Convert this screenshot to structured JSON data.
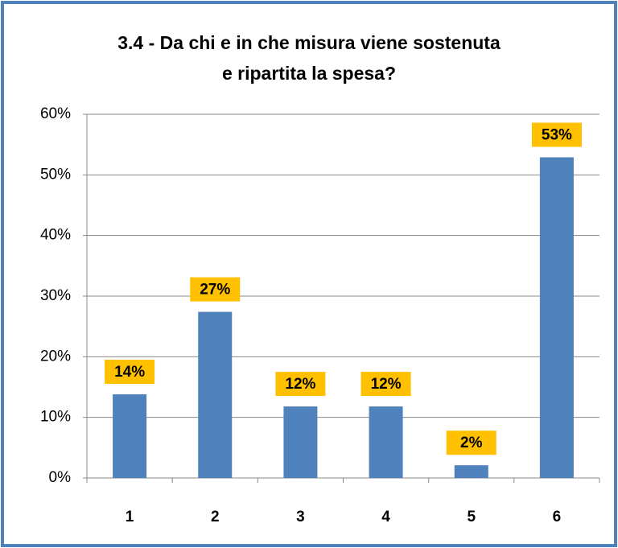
{
  "chart_data": {
    "type": "bar",
    "title": [
      "3.4 - Da chi e in che misura viene sostenuta",
      "e ripartita la spesa?"
    ],
    "categories": [
      "1",
      "2",
      "3",
      "4",
      "5",
      "6"
    ],
    "values": [
      13.8,
      27.4,
      11.8,
      11.8,
      2.1,
      52.9
    ],
    "value_labels": [
      "14%",
      "27%",
      "12%",
      "12%",
      "2%",
      "53%"
    ],
    "color": "#4f81bd",
    "label_color": "#ffc000",
    "ylim": [
      0,
      60
    ],
    "yticks": [
      {
        "value": 0,
        "label": "0%"
      },
      {
        "value": 10,
        "label": "10%"
      },
      {
        "value": 20,
        "label": "20%"
      },
      {
        "value": 30,
        "label": "30%"
      },
      {
        "value": 40,
        "label": "40%"
      },
      {
        "value": 50,
        "label": "50%"
      },
      {
        "value": 60,
        "label": "60%"
      }
    ],
    "grid": true
  }
}
